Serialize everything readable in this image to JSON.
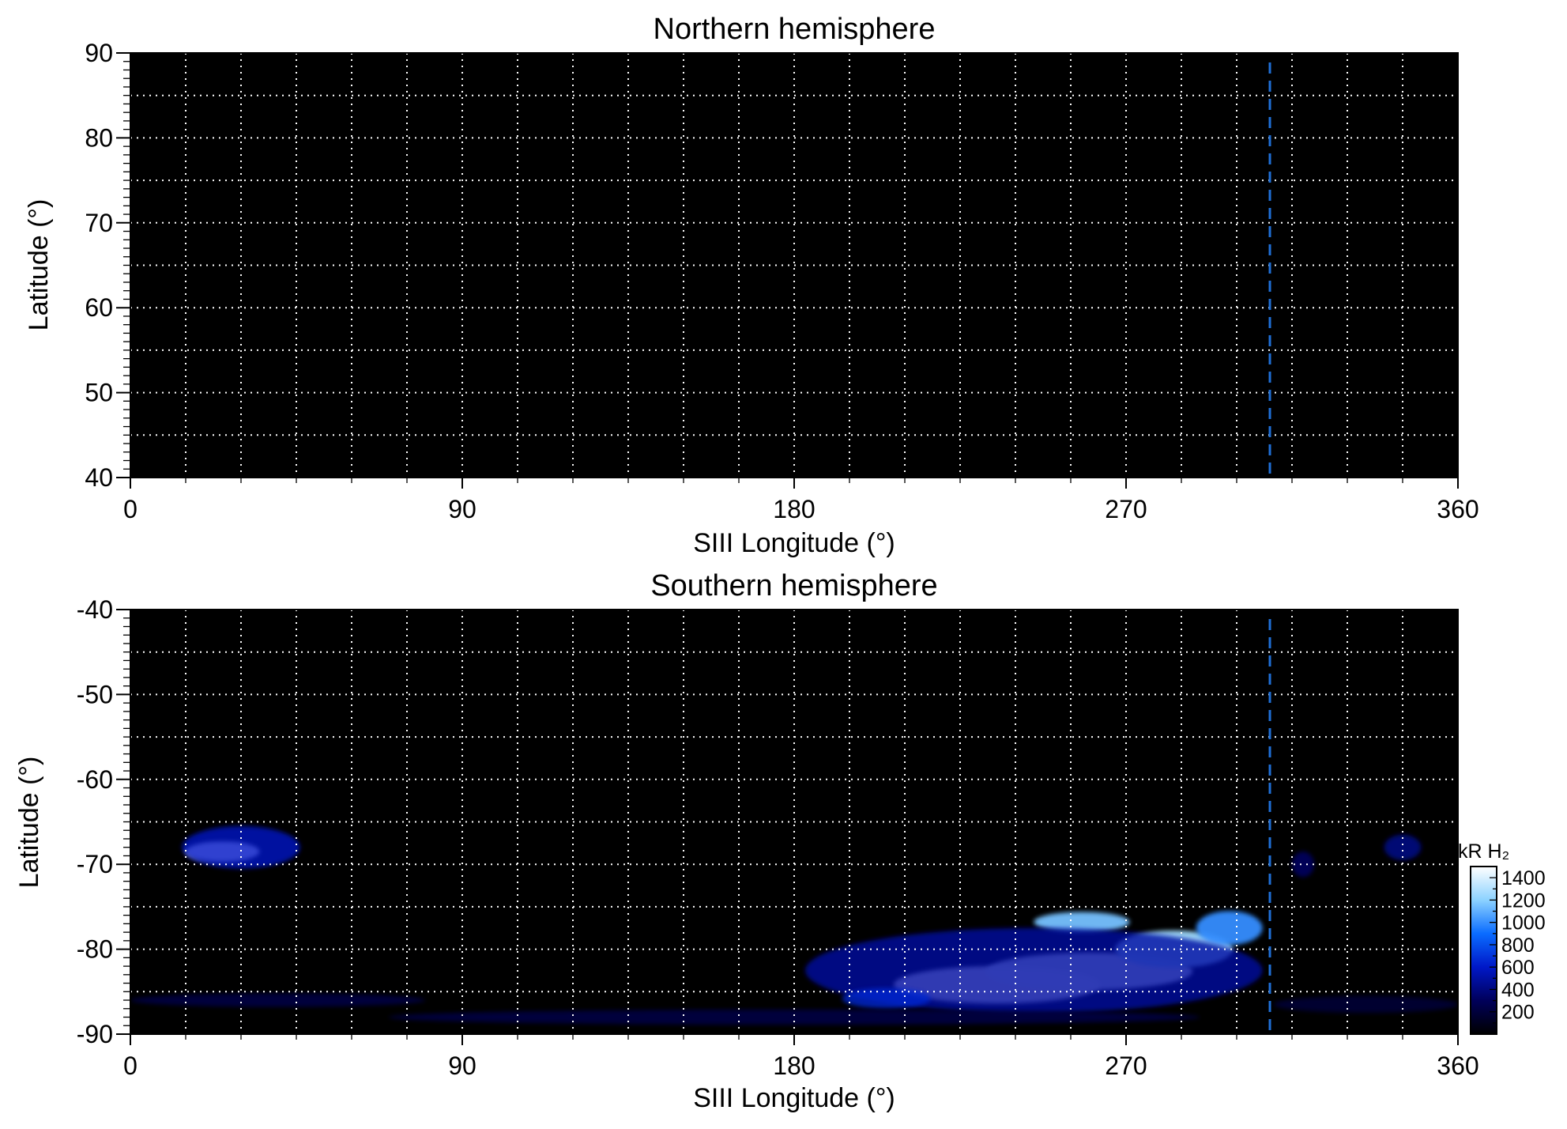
{
  "chart_data": [
    {
      "type": "heatmap",
      "title": "Northern hemisphere",
      "xlabel": "SIII Longitude (°)",
      "ylabel": "Latitude (°)",
      "xlim": [
        0,
        360
      ],
      "ylim": [
        40,
        90
      ],
      "xticks": [
        "0",
        "90",
        "180",
        "270",
        "360"
      ],
      "yticks": [
        "90",
        "80",
        "70",
        "60",
        "50",
        "40"
      ],
      "ytick_values": [
        90,
        80,
        70,
        60,
        50,
        40
      ],
      "grid": true,
      "background_color": "#000000",
      "marker_line": {
        "longitude": 309,
        "style": "dashed",
        "color": "#1f6fd6"
      },
      "emission": []
    },
    {
      "type": "heatmap",
      "title": "Southern hemisphere",
      "xlabel": "SIII Longitude (°)",
      "ylabel": "Latitude (°)",
      "xlim": [
        0,
        360
      ],
      "ylim": [
        -90,
        -40
      ],
      "xticks": [
        "0",
        "90",
        "180",
        "270",
        "360"
      ],
      "yticks": [
        "-40",
        "-50",
        "-60",
        "-70",
        "-80",
        "-90"
      ],
      "ytick_values": [
        -40,
        -50,
        -60,
        -70,
        -80,
        -90
      ],
      "grid": true,
      "background_color": "#000000",
      "marker_line": {
        "longitude": 309,
        "style": "dashed",
        "color": "#1f6fd6"
      },
      "emission": [
        {
          "lon": 25,
          "lat": -68.5,
          "dlon": 10,
          "dlat": 1.2,
          "value": 1500
        },
        {
          "lon": 30,
          "lat": -68.0,
          "dlon": 16,
          "dlat": 2.5,
          "value": 600
        },
        {
          "lon": 235,
          "lat": -84.2,
          "dlon": 28,
          "dlat": 2.2,
          "value": 1500
        },
        {
          "lon": 260,
          "lat": -82.6,
          "dlon": 28,
          "dlat": 2.2,
          "value": 1450
        },
        {
          "lon": 283,
          "lat": -80.0,
          "dlon": 16,
          "dlat": 2.2,
          "value": 1250
        },
        {
          "lon": 298,
          "lat": -77.5,
          "dlon": 9,
          "dlat": 2.0,
          "value": 1000
        },
        {
          "lon": 258,
          "lat": -76.8,
          "dlon": 13,
          "dlat": 1.2,
          "value": 1150
        },
        {
          "lon": 245,
          "lat": -82.5,
          "dlon": 62,
          "dlat": 5.0,
          "value": 500
        },
        {
          "lon": 205,
          "lat": -85.8,
          "dlon": 12,
          "dlat": 1.2,
          "value": 650
        },
        {
          "lon": 345,
          "lat": -68.0,
          "dlon": 5,
          "dlat": 1.5,
          "value": 450
        },
        {
          "lon": 318,
          "lat": -70.0,
          "dlon": 3,
          "dlat": 1.5,
          "value": 350
        },
        {
          "lon": 180,
          "lat": -88.0,
          "dlon": 110,
          "dlat": 0.9,
          "value": 250
        },
        {
          "lon": 40,
          "lat": -86.0,
          "dlon": 40,
          "dlat": 0.8,
          "value": 250
        },
        {
          "lon": 335,
          "lat": -86.5,
          "dlon": 25,
          "dlat": 1.0,
          "value": 200
        }
      ]
    }
  ],
  "colorbar": {
    "label": "kR H₂",
    "ticks": [
      "1400",
      "1200",
      "1000",
      "800",
      "600",
      "400",
      "200"
    ],
    "tick_values": [
      1400,
      1200,
      1000,
      800,
      600,
      400,
      200
    ],
    "range": [
      0,
      1500
    ],
    "colormap": [
      "#000000",
      "#00005a",
      "#0018c8",
      "#0a6cff",
      "#8cd2ff",
      "#ffffff"
    ]
  }
}
